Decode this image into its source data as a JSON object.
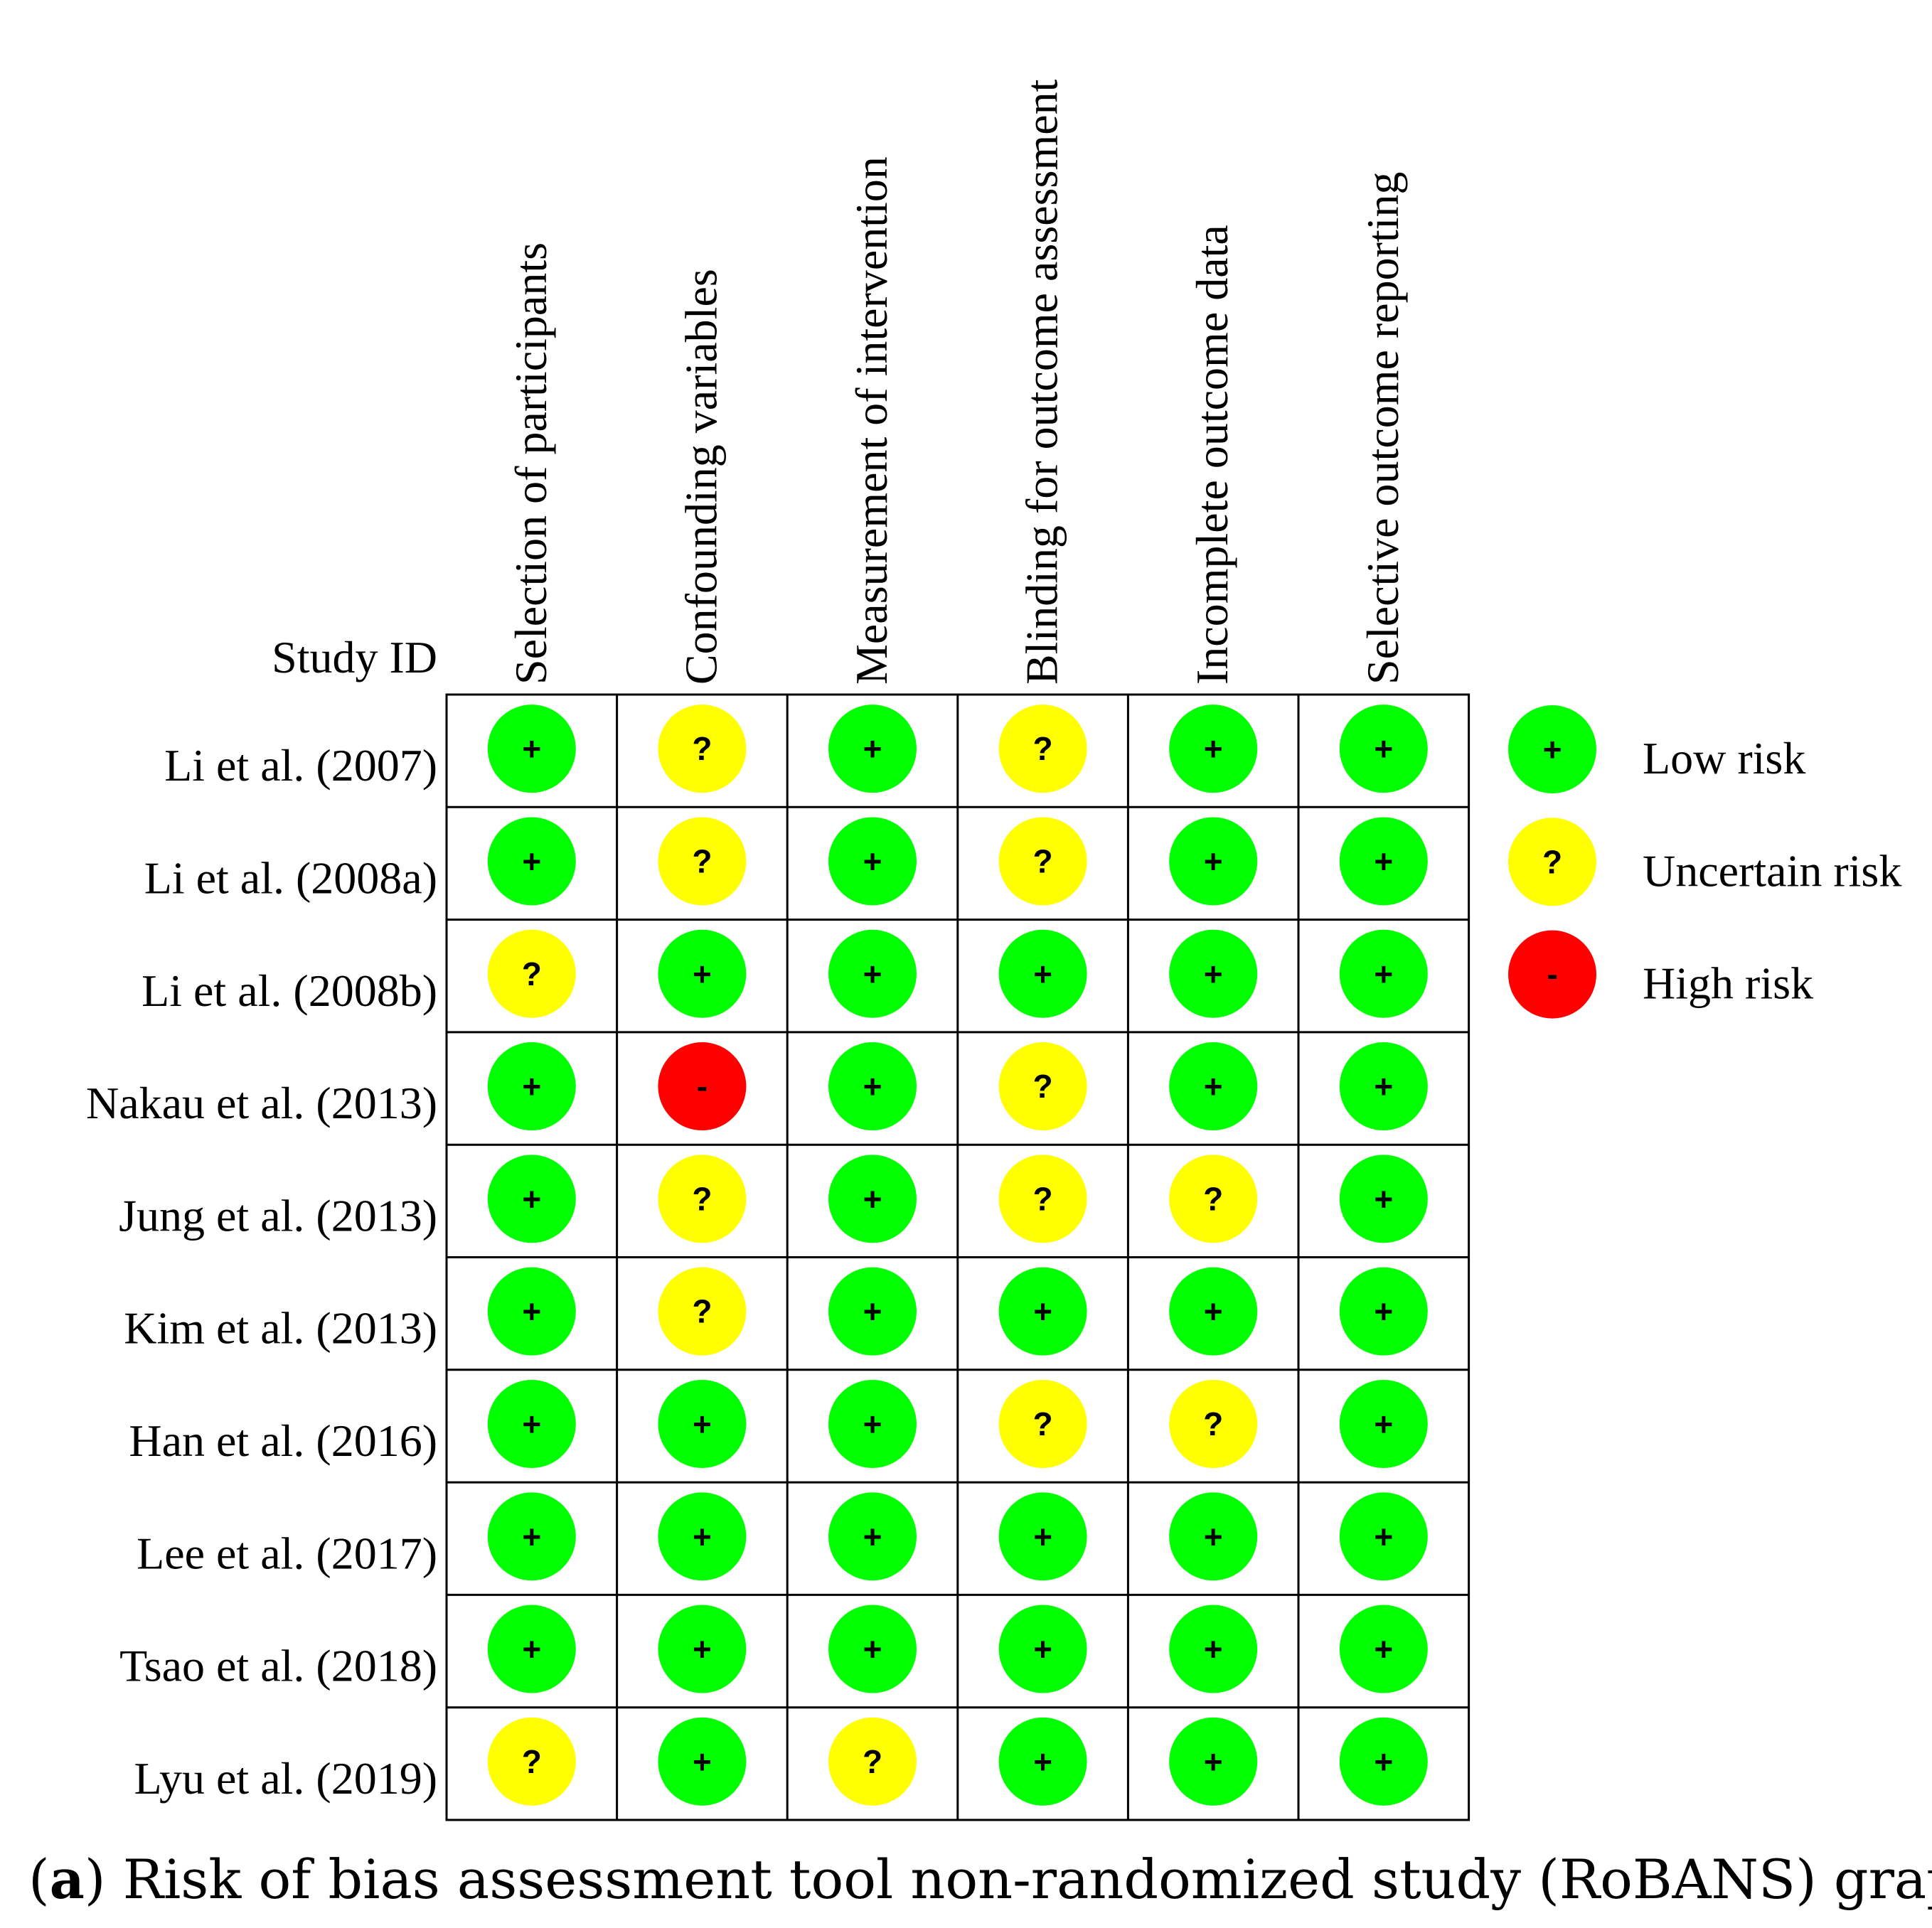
{
  "chart_data": {
    "type": "table",
    "row_header": "Study ID",
    "columns": [
      "Selection of participants",
      "Confounding variables",
      "Measurement of intervention",
      "Blinding for outcome assessment",
      "Incomplete outcome data",
      "Selective outcome reporting"
    ],
    "rows": [
      {
        "study": "Li et al. (2007)",
        "ratings": [
          "low",
          "uncertain",
          "low",
          "uncertain",
          "low",
          "low"
        ]
      },
      {
        "study": "Li et al. (2008a)",
        "ratings": [
          "low",
          "uncertain",
          "low",
          "uncertain",
          "low",
          "low"
        ]
      },
      {
        "study": "Li et al. (2008b)",
        "ratings": [
          "uncertain",
          "low",
          "low",
          "low",
          "low",
          "low"
        ]
      },
      {
        "study": "Nakau et al. (2013)",
        "ratings": [
          "low",
          "high",
          "low",
          "uncertain",
          "low",
          "low"
        ]
      },
      {
        "study": "Jung et al. (2013)",
        "ratings": [
          "low",
          "uncertain",
          "low",
          "uncertain",
          "uncertain",
          "low"
        ]
      },
      {
        "study": "Kim et al. (2013)",
        "ratings": [
          "low",
          "uncertain",
          "low",
          "low",
          "low",
          "low"
        ]
      },
      {
        "study": "Han et al. (2016)",
        "ratings": [
          "low",
          "low",
          "low",
          "uncertain",
          "uncertain",
          "low"
        ]
      },
      {
        "study": "Lee et al. (2017)",
        "ratings": [
          "low",
          "low",
          "low",
          "low",
          "low",
          "low"
        ]
      },
      {
        "study": "Tsao et al. (2018)",
        "ratings": [
          "low",
          "low",
          "low",
          "low",
          "low",
          "low"
        ]
      },
      {
        "study": "Lyu et al. (2019)",
        "ratings": [
          "uncertain",
          "low",
          "uncertain",
          "low",
          "low",
          "low"
        ]
      }
    ],
    "legend": [
      {
        "key": "low",
        "symbol": "+",
        "label": "Low risk",
        "color": "#00ff00"
      },
      {
        "key": "uncertain",
        "symbol": "?",
        "label": "Uncertain risk",
        "color": "#ffff00"
      },
      {
        "key": "high",
        "symbol": "-",
        "label": "High risk",
        "color": "#ff0000"
      }
    ],
    "legend_position": "right",
    "caption_bold": "a",
    "caption_text": " Risk of bias assessment tool non-randomized study (RoBANS) graph"
  }
}
